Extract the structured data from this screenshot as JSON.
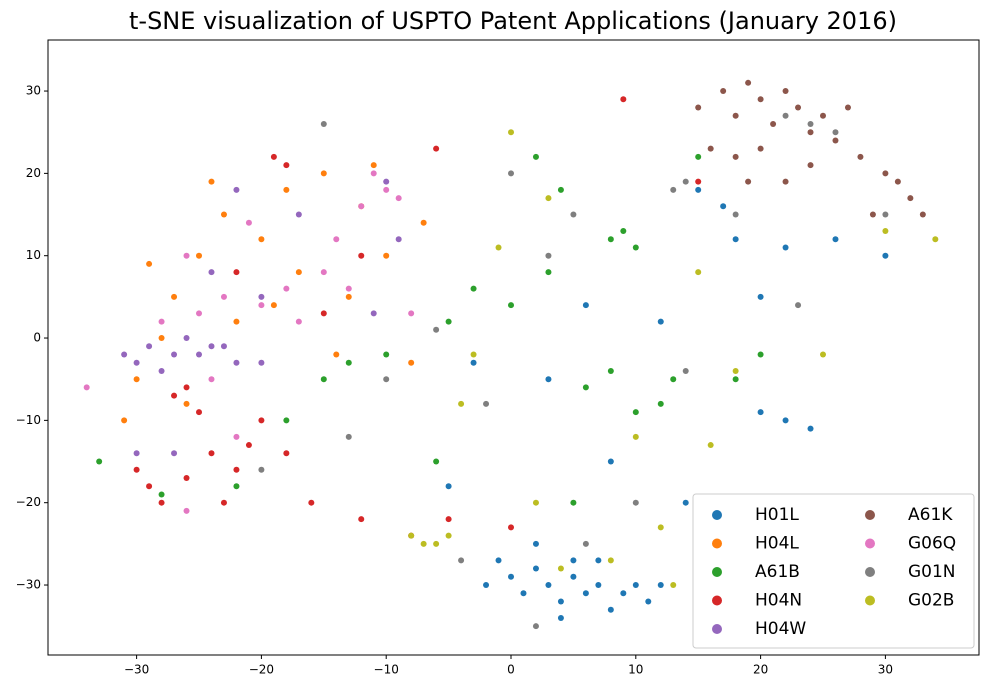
{
  "chart_data": {
    "type": "scatter",
    "title": "t-SNE visualization of USPTO Patent Applications (January 2016)",
    "xlim": [
      -37.1,
      37.5
    ],
    "ylim": [
      -38.5,
      36.2
    ],
    "xticks": [
      {
        "value": -30,
        "label": "−30"
      },
      {
        "value": -20,
        "label": "−20"
      },
      {
        "value": -10,
        "label": "−10"
      },
      0,
      10,
      20,
      30
    ],
    "yticks": [
      {
        "value": -30,
        "label": "−30"
      },
      {
        "value": -20,
        "label": "−20"
      },
      {
        "value": -10,
        "label": "−10"
      },
      0,
      10,
      20,
      30
    ],
    "legend": "lower right",
    "series": [
      {
        "name": "H01L",
        "color": "#1f77b4",
        "x": [
          0,
          1,
          2,
          3,
          4,
          5,
          6,
          7,
          8,
          9,
          10,
          -1,
          2,
          5,
          11,
          12,
          -2,
          4,
          7,
          20,
          22,
          24,
          18,
          22,
          26,
          30,
          15,
          17,
          12,
          6,
          -3,
          3,
          8,
          -5,
          20,
          14
        ],
        "values": [
          -29,
          -31,
          -28,
          -30,
          -32,
          -29,
          -31,
          -30,
          -33,
          -31,
          -30,
          -27,
          -25,
          -27,
          -32,
          -30,
          -30,
          -34,
          -27,
          -9,
          -10,
          -11,
          12,
          11,
          12,
          10,
          18,
          16,
          2,
          4,
          -3,
          -5,
          -15,
          -18,
          5,
          -20
        ]
      },
      {
        "name": "H04L",
        "color": "#ff7f0e",
        "x": [
          -30,
          -28,
          -27,
          -25,
          -23,
          -20,
          -18,
          -15,
          -12,
          -10,
          -13,
          -17,
          -22,
          -26,
          -31,
          -14,
          -8,
          -19,
          -24,
          -11,
          -29,
          -7
        ],
        "values": [
          -5,
          0,
          5,
          10,
          15,
          12,
          18,
          20,
          16,
          10,
          5,
          8,
          2,
          -8,
          -10,
          -2,
          -3,
          4,
          19,
          21,
          9,
          14
        ]
      },
      {
        "name": "A61B",
        "color": "#2ca02c",
        "x": [
          8,
          9,
          10,
          -15,
          -13,
          -10,
          -5,
          -3,
          0,
          3,
          6,
          8,
          12,
          10,
          18,
          20,
          -22,
          -28,
          4,
          2,
          15,
          -18,
          -6,
          5,
          -33,
          13
        ],
        "values": [
          12,
          13,
          11,
          -5,
          -3,
          -2,
          2,
          6,
          4,
          8,
          -6,
          -4,
          -8,
          -9,
          -5,
          -2,
          -18,
          -19,
          18,
          22,
          22,
          -10,
          -15,
          -20,
          -15,
          -5
        ]
      },
      {
        "name": "H04N",
        "color": "#d62728",
        "x": [
          -27,
          -25,
          -26,
          -24,
          -22,
          -26,
          -29,
          -30,
          -20,
          -21,
          -18,
          -28,
          -23,
          -19,
          -18,
          -22,
          -16,
          -12,
          -8,
          -5,
          0,
          -15,
          -12,
          -6,
          9,
          15
        ],
        "values": [
          -7,
          -9,
          -6,
          -14,
          -16,
          -17,
          -18,
          -16,
          -10,
          -13,
          -14,
          -20,
          -20,
          22,
          21,
          8,
          -20,
          -22,
          -24,
          -22,
          -23,
          3,
          10,
          23,
          29,
          19
        ]
      },
      {
        "name": "H04W",
        "color": "#9467bd",
        "x": [
          -30,
          -29,
          -28,
          -31,
          -27,
          -25,
          -24,
          -22,
          -26,
          -23,
          -20,
          -24,
          -22,
          -17,
          -10,
          -11,
          -27,
          -30,
          -20,
          -9
        ],
        "values": [
          -3,
          -1,
          -4,
          -2,
          -2,
          -2,
          -1,
          -3,
          0,
          -1,
          5,
          8,
          18,
          15,
          19,
          3,
          -14,
          -14,
          -3,
          12
        ]
      },
      {
        "name": "A61K",
        "color": "#8c564b",
        "x": [
          15,
          17,
          18,
          19,
          20,
          21,
          22,
          23,
          24,
          25,
          26,
          20,
          18,
          16,
          28,
          30,
          32,
          33,
          29,
          31,
          22,
          24,
          27,
          19
        ],
        "values": [
          28,
          30,
          27,
          31,
          29,
          26,
          30,
          28,
          25,
          27,
          24,
          23,
          22,
          23,
          22,
          20,
          17,
          15,
          15,
          19,
          19,
          21,
          28,
          19
        ]
      },
      {
        "name": "G06Q",
        "color": "#e377c2",
        "x": [
          -10,
          -11,
          -9,
          -12,
          -15,
          -13,
          -18,
          -20,
          -23,
          -25,
          -17,
          -21,
          -14,
          -26,
          -28,
          -8,
          -24,
          -22,
          -34,
          -26
        ],
        "values": [
          18,
          20,
          17,
          16,
          8,
          6,
          6,
          4,
          5,
          3,
          2,
          14,
          12,
          10,
          2,
          3,
          -5,
          -12,
          -6,
          -21
        ]
      },
      {
        "name": "G01N",
        "color": "#7f7f7f",
        "x": [
          22,
          24,
          26,
          14,
          13,
          -15,
          0,
          3,
          5,
          -6,
          -10,
          -13,
          -20,
          -4,
          2,
          6,
          10,
          14,
          23,
          18,
          30,
          -2
        ],
        "values": [
          27,
          26,
          25,
          19,
          18,
          26,
          20,
          10,
          15,
          1,
          -5,
          -12,
          -16,
          -27,
          -35,
          -25,
          -20,
          -4,
          4,
          15,
          15,
          -8
        ]
      },
      {
        "name": "G02B",
        "color": "#bcbd22",
        "x": [
          -6,
          -7,
          -5,
          -8,
          2,
          10,
          18,
          16,
          25,
          30,
          34,
          15,
          3,
          -1,
          -4,
          8,
          4,
          -3,
          0,
          12,
          13
        ],
        "values": [
          -25,
          -25,
          -24,
          -24,
          -20,
          -12,
          -4,
          -13,
          -2,
          13,
          12,
          8,
          17,
          11,
          -8,
          -27,
          -28,
          -2,
          25,
          -23,
          -30
        ]
      }
    ]
  }
}
